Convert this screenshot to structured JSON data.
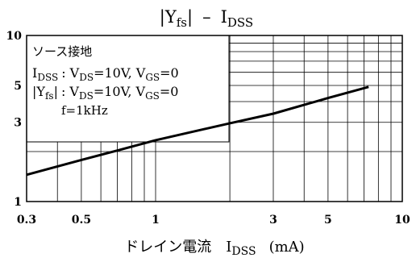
{
  "chart_data": {
    "type": "line",
    "title": {
      "abs_open": "|",
      "y_main": "Y",
      "y_sub": "fs",
      "abs_close": "|",
      "dash": "–",
      "i_main": "I",
      "i_sub": "DSS"
    },
    "xlabel": {
      "text": "ドレイン電流",
      "sym_main": "I",
      "sym_sub": "DSS",
      "unit": "(mA)"
    },
    "x_scale": "log",
    "y_scale": "log",
    "xlim": [
      0.3,
      10
    ],
    "ylim": [
      1,
      10
    ],
    "x_tick_labels": [
      {
        "value": 0.3,
        "label": "0.3"
      },
      {
        "value": 0.5,
        "label": "0.5"
      },
      {
        "value": 1,
        "label": "1"
      },
      {
        "value": 3,
        "label": "3"
      },
      {
        "value": 5,
        "label": "5"
      },
      {
        "value": 10,
        "label": "10"
      }
    ],
    "y_tick_labels": [
      {
        "value": 1,
        "label": "1"
      },
      {
        "value": 3,
        "label": "3"
      },
      {
        "value": 5,
        "label": "5"
      },
      {
        "value": 10,
        "label": "10"
      }
    ],
    "x_grid": [
      0.4,
      0.5,
      0.6,
      0.7,
      0.8,
      0.9,
      1,
      2,
      3,
      4,
      5,
      6,
      7,
      8,
      9
    ],
    "y_grid": [
      2,
      3,
      4,
      5,
      6,
      7,
      8,
      9
    ],
    "grid": true,
    "series": [
      {
        "color": "#000000",
        "x": [
          0.3,
          0.5,
          0.7,
          1,
          2,
          3,
          5,
          7.3
        ],
        "y": [
          1.45,
          1.78,
          2.03,
          2.34,
          2.96,
          3.38,
          4.2,
          4.9
        ]
      }
    ],
    "condition_box": {
      "line1": "ソース接地",
      "line2": {
        "i_main": "I",
        "i_sub": "DSS",
        "sep": ": V",
        "v_sub": "DS",
        "rest": "=10V, V",
        "g_sub": "GS",
        "end": "=0"
      },
      "line3": {
        "abs_open": "|",
        "y_main": "Y",
        "y_sub": "fs",
        "abs_close": "|",
        "sep": ": V",
        "v_sub": "DS",
        "rest": "=10V, V",
        "g_sub": "GS",
        "end": "=0"
      },
      "line4": "f=1kHz"
    }
  }
}
